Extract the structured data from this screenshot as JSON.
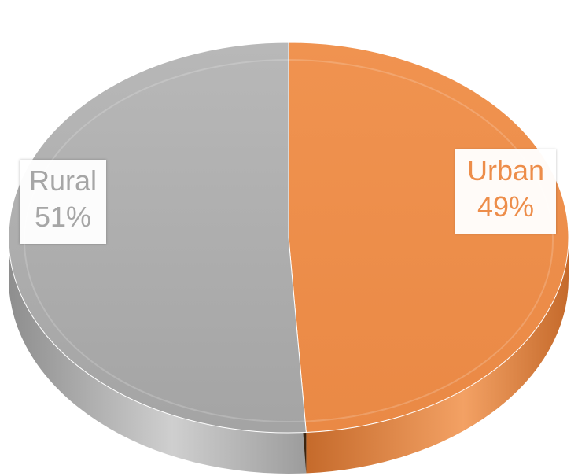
{
  "chart_data": {
    "type": "pie",
    "style": "3d",
    "categories": [
      "Rural",
      "Urban"
    ],
    "values": [
      51,
      49
    ],
    "labels": [
      {
        "category": "Rural",
        "percent": "51%"
      },
      {
        "category": "Urban",
        "percent": "49%"
      }
    ],
    "colors": {
      "Rural": "#a6a6a6",
      "Urban": "#ed8d4a"
    },
    "legend": "none",
    "title": ""
  }
}
